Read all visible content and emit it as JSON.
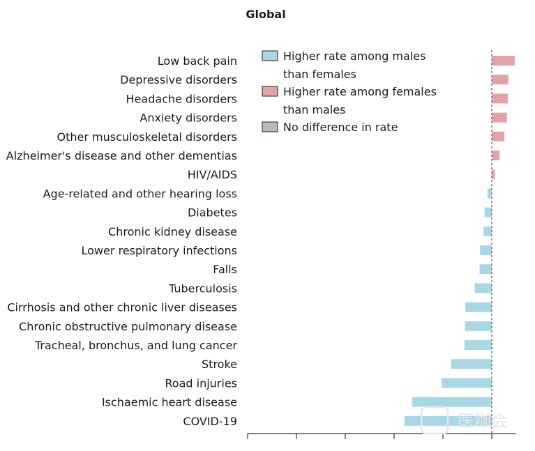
{
  "chart_data": {
    "type": "bar",
    "orientation": "horizontal",
    "title": "Global",
    "xlabel": "",
    "ylabel": "",
    "xlim": [
      -5,
      0.5
    ],
    "zero_line": "dashed",
    "grid": false,
    "legend_position": "top-left",
    "categories": [
      "Low back pain",
      "Depressive disorders",
      "Headache disorders",
      "Anxiety disorders",
      "Other musculoskeletal disorders",
      "Alzheimer's disease and other dementias",
      "HIV/AIDS",
      "Age-related and other hearing loss",
      "Diabetes",
      "Chronic kidney disease",
      "Lower respiratory infections",
      "Falls",
      "Tuberculosis",
      "Cirrhosis and other chronic liver diseases",
      "Chronic obstructive pulmonary disease",
      "Tracheal, bronchus, and lung cancer",
      "Stroke",
      "Road injuries",
      "Ischaemic heart disease",
      "COVID-19"
    ],
    "values": [
      0.47,
      0.34,
      0.33,
      0.31,
      0.26,
      0.16,
      0.06,
      -0.09,
      -0.15,
      -0.17,
      -0.24,
      -0.25,
      -0.35,
      -0.54,
      -0.55,
      -0.56,
      -0.83,
      -1.03,
      -1.63,
      -1.79
    ],
    "series": [
      {
        "name": "Higher rate among males than females",
        "color": "#a8d8e6"
      },
      {
        "name": "Higher rate among females than males",
        "color": "#e3a3a6"
      },
      {
        "name": "No difference in rate",
        "color": "#b8bcbf"
      }
    ],
    "legend": [
      {
        "lines": [
          "Higher rate among males",
          "than females"
        ],
        "color": "#a8d8e6"
      },
      {
        "lines": [
          "Higher rate among females",
          "than males"
        ],
        "color": "#e3a3a6"
      },
      {
        "lines": [
          "No difference in rate"
        ],
        "color": "#b8bcbf"
      }
    ]
  },
  "watermark": {
    "text": "医咖会"
  }
}
